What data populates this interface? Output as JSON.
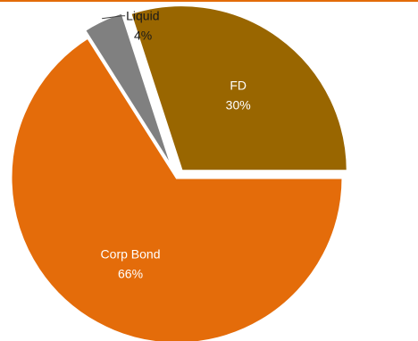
{
  "chart_data": {
    "type": "pie",
    "title": "",
    "slices": [
      {
        "label": "FD",
        "value": 30,
        "pct_label": "30%",
        "color": "#996600",
        "exploded": true,
        "label_position": "inside",
        "label_color": "#ffffff"
      },
      {
        "label": "Liquid",
        "value": 4,
        "pct_label": "4%",
        "color": "#808080",
        "exploded": true,
        "label_position": "outside-leader",
        "label_color": "#1a1a1a"
      },
      {
        "label": "Corp Bond",
        "value": 66,
        "pct_label": "66%",
        "color": "#E46C0A",
        "exploded": false,
        "label_position": "inside",
        "label_color": "#ffffff"
      }
    ],
    "start_angle_deg": 0,
    "direction": "clockwise",
    "legend": "none"
  },
  "colors": {
    "accent_rule": "#E36C09",
    "slice_border": "#ffffff",
    "leader_line": "#404040"
  }
}
